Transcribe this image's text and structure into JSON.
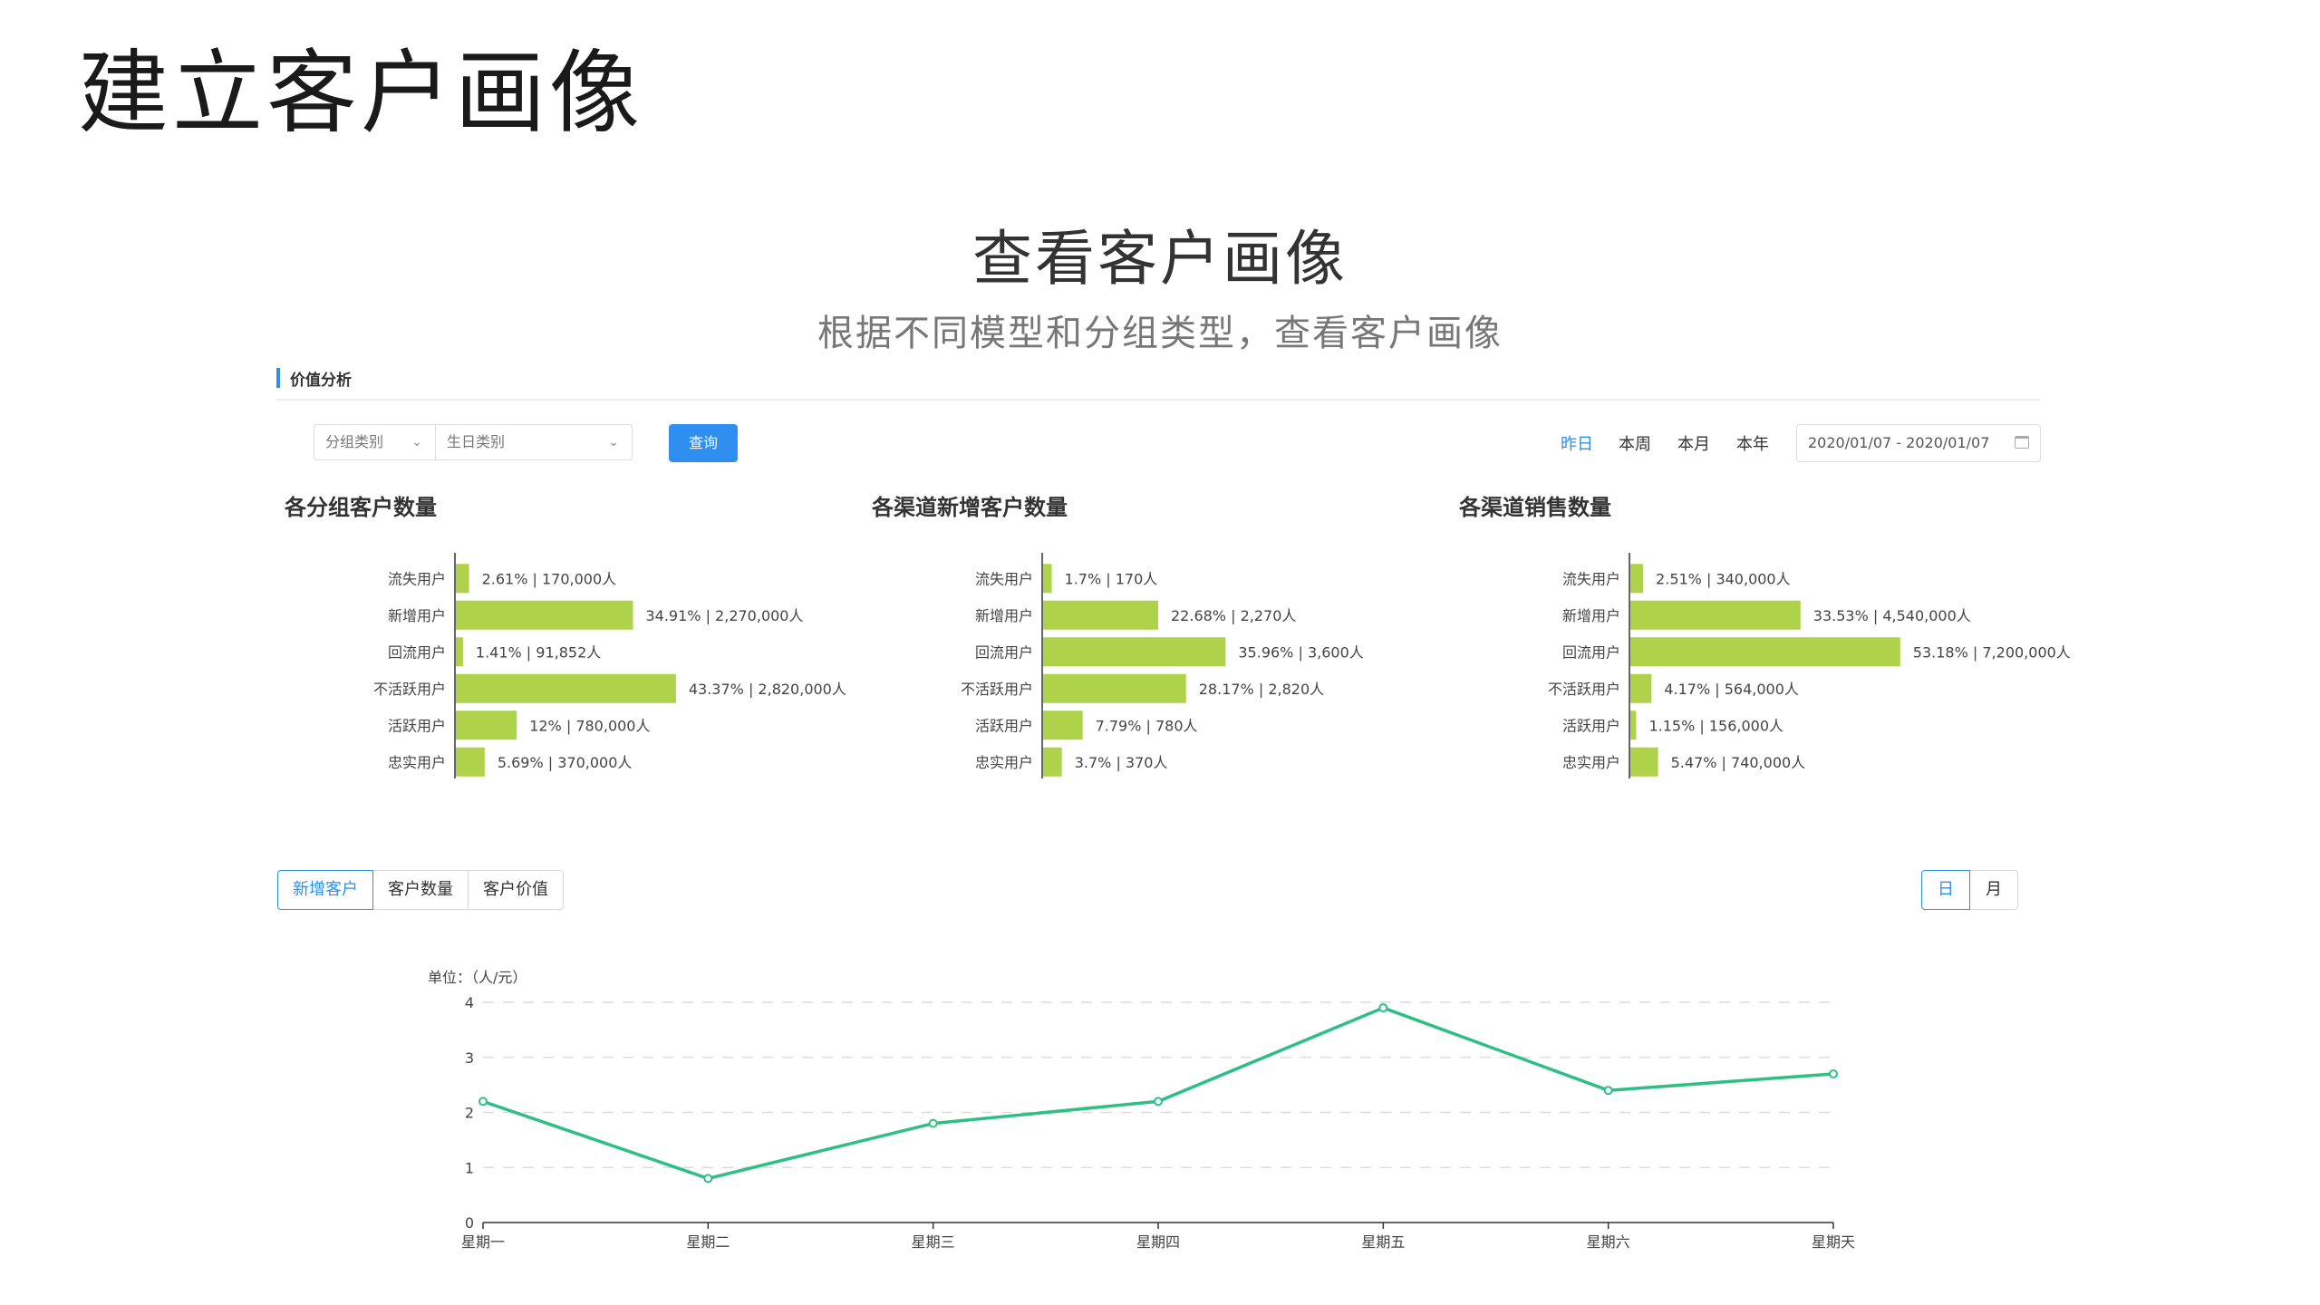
{
  "slide_title": "建立客户画像",
  "hero": {
    "title": "查看客户画像",
    "subtitle": "根据不同模型和分组类型，查看客户画像"
  },
  "section": {
    "label": "价值分析"
  },
  "filters": {
    "group_select": "分组类别",
    "birthday_select": "生日类别",
    "query_label": "查询",
    "date_tabs": [
      {
        "label": "昨日",
        "active": true
      },
      {
        "label": "本周",
        "active": false
      },
      {
        "label": "本月",
        "active": false
      },
      {
        "label": "本年",
        "active": false
      }
    ],
    "date_range": "2020/01/07 - 2020/01/07"
  },
  "colors": {
    "accent": "#2e8ff0",
    "bar": "#aed24a",
    "line": "#2fbf85"
  },
  "chart_data": [
    {
      "type": "bar",
      "title": "各分组客户数量",
      "categories": [
        "流失用户",
        "新增用户",
        "回流用户",
        "不活跃用户",
        "活跃用户",
        "忠实用户"
      ],
      "values": [
        2.61,
        34.91,
        1.41,
        43.37,
        12,
        5.69
      ],
      "labels": [
        "2.61%  |  170,000人",
        "34.91%  |  2,270,000人",
        "1.41%  |  91,852人",
        "43.37%  |  2,820,000人",
        "12%  |  780,000人",
        "5.69%  |  370,000人"
      ]
    },
    {
      "type": "bar",
      "title": "各渠道新增客户数量",
      "categories": [
        "流失用户",
        "新增用户",
        "回流用户",
        "不活跃用户",
        "活跃用户",
        "忠实用户"
      ],
      "values": [
        1.7,
        22.68,
        35.96,
        28.17,
        7.79,
        3.7
      ],
      "labels": [
        "1.7%  |  170人",
        "22.68%  |  2,270人",
        "35.96%  |  3,600人",
        "28.17%  |  2,820人",
        "7.79%  |  780人",
        "3.7%  |  370人"
      ]
    },
    {
      "type": "bar",
      "title": "各渠道销售数量",
      "categories": [
        "流失用户",
        "新增用户",
        "回流用户",
        "不活跃用户",
        "活跃用户",
        "忠实用户"
      ],
      "values": [
        2.51,
        33.53,
        53.18,
        4.17,
        1.15,
        5.47
      ],
      "labels": [
        "2.51%  |  340,000人",
        "33.53%  |  4,540,000人",
        "53.18%  |  7,200,000人",
        "4.17%  |  564,000人",
        "1.15%  |  156,000人",
        "5.47%  |  740,000人"
      ]
    },
    {
      "type": "line",
      "ylabel": "单位：（人/元）",
      "categories": [
        "星期一",
        "星期二",
        "星期三",
        "星期四",
        "星期五",
        "星期六",
        "星期天"
      ],
      "values": [
        2.2,
        0.8,
        1.8,
        2.2,
        3.9,
        2.4,
        2.7
      ],
      "ylim": [
        0,
        4
      ],
      "yticks": [
        "0",
        "1",
        "2",
        "3",
        "4"
      ],
      "grid": true
    }
  ],
  "metric_tabs": [
    {
      "label": "新增客户",
      "active": true
    },
    {
      "label": "客户数量",
      "active": false
    },
    {
      "label": "客户价值",
      "active": false
    }
  ],
  "unit_tabs": [
    {
      "label": "日",
      "active": true
    },
    {
      "label": "月",
      "active": false
    }
  ]
}
